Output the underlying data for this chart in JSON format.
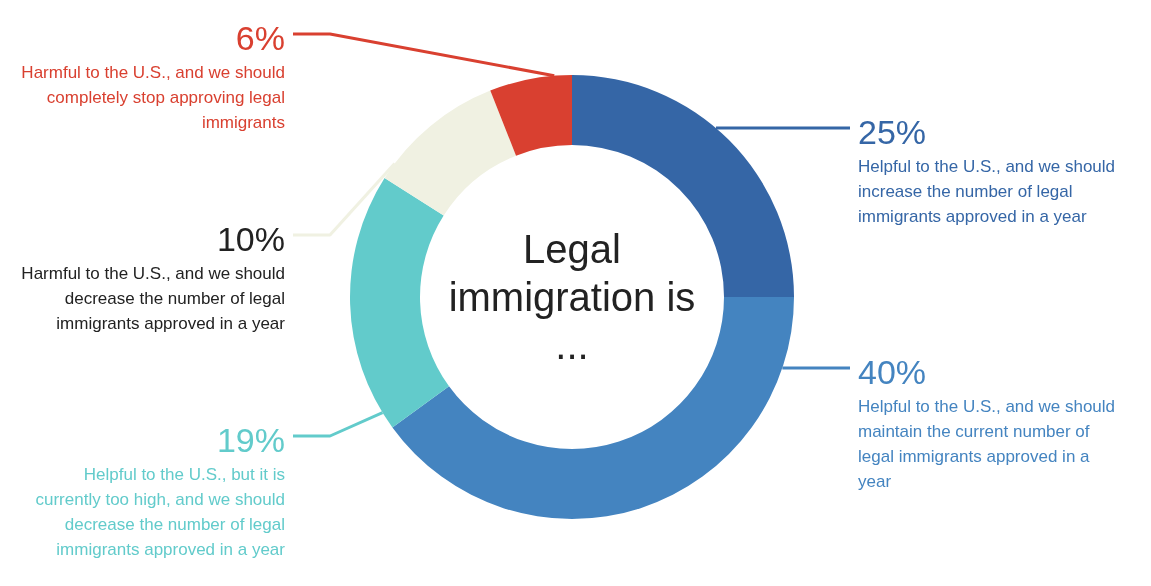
{
  "chart_data": {
    "type": "donut",
    "title": "Legal immigration is ...",
    "categories": [
      "Helpful to the U.S., and we should increase the number of legal immigrants approved in a year",
      "Helpful to the U.S., and we should maintain the current number of legal immigrants approved in a year",
      "Helpful to the U.S., but it is currently too high, and we should decrease the number of legal immigrants approved in a year",
      "Harmful to the U.S., and we should decrease the number of legal immigrants approved in a year",
      "Harmful to the U.S., and we should completely stop approving legal immigrants"
    ],
    "values": [
      25,
      40,
      19,
      10,
      6
    ],
    "value_labels": [
      "25%",
      "40%",
      "19%",
      "10%",
      "6%"
    ],
    "colors": [
      "#3566a6",
      "#4484c0",
      "#62cbcb",
      "#f0f1e2",
      "#d94030"
    ]
  }
}
